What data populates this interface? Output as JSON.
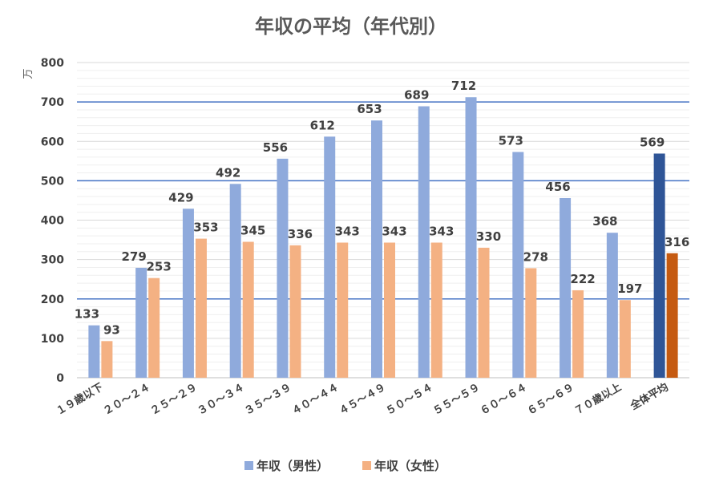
{
  "chart_data": {
    "type": "bar",
    "title": "年収の平均（年代別）",
    "unit_label": "万",
    "ylim": [
      0,
      800
    ],
    "yticks": [
      0,
      100,
      200,
      300,
      400,
      500,
      600,
      700,
      800
    ],
    "minor_grid_step": 20,
    "reference_lines": [
      200,
      500,
      700
    ],
    "categories": [
      "１９歳以下",
      "２０～２４",
      "２５～２９",
      "３０～３４",
      "３５～３９",
      "４０～４４",
      "４５～４９",
      "５０～５４",
      "５５～５９",
      "６０～６４",
      "６５～６９",
      "７０歳以上",
      "全体平均"
    ],
    "series": [
      {
        "name": "年収（男性）",
        "values": [
          133,
          279,
          429,
          492,
          556,
          612,
          653,
          689,
          712,
          573,
          456,
          368,
          569
        ]
      },
      {
        "name": "年収（女性）",
        "values": [
          93,
          253,
          353,
          345,
          336,
          343,
          343,
          343,
          330,
          278,
          222,
          197,
          316
        ]
      }
    ],
    "colors": {
      "male": "#8faadc",
      "female": "#f4b183",
      "male_highlight": "#2f5597",
      "female_highlight": "#c55a11",
      "reference_line": "#4472c4",
      "grid": "#e3e3e3"
    },
    "highlight_category": "全体平均",
    "legend_position": "bottom",
    "grid": true
  }
}
